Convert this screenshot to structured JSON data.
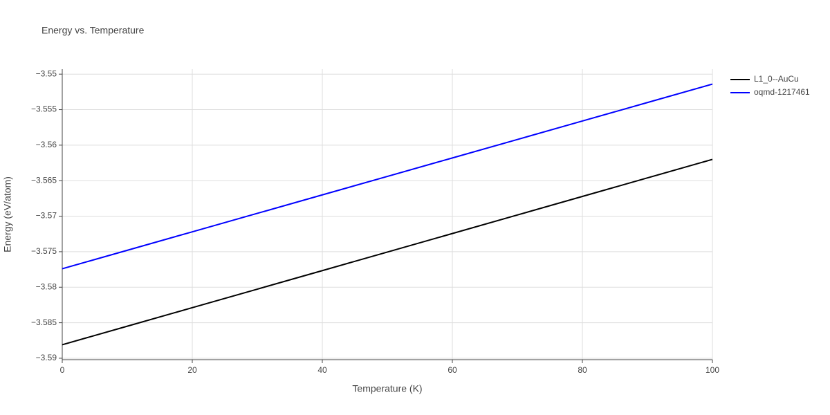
{
  "chart_data": {
    "type": "line",
    "title": "Energy vs. Temperature",
    "x_label": "Temperature (K)",
    "y_label": "Energy (eV/atom)",
    "x": [
      0,
      10,
      20,
      30,
      40,
      50,
      60,
      70,
      80,
      90,
      100
    ],
    "series": [
      {
        "name": "L1_0--AuCu",
        "color": "#000000",
        "values": [
          -3.5881,
          -3.58549,
          -3.58288,
          -3.58027,
          -3.57766,
          -3.57505,
          -3.57244,
          -3.56983,
          -3.56722,
          -3.56461,
          -3.562
        ]
      },
      {
        "name": "oqmd-1217461",
        "color": "#0000ff",
        "values": [
          -3.5774,
          -3.5748,
          -3.5722,
          -3.5696,
          -3.567,
          -3.5644,
          -3.5618,
          -3.5592,
          -3.5566,
          -3.554,
          -3.5514
        ]
      }
    ],
    "xlim": [
      0,
      100
    ],
    "xticks": [
      0,
      20,
      40,
      60,
      80,
      100
    ],
    "ylim": [
      -3.5902,
      -3.5493
    ],
    "yticks": [
      {
        "value": -3.59,
        "label": "−3.59"
      },
      {
        "value": -3.585,
        "label": "−3.585"
      },
      {
        "value": -3.58,
        "label": "−3.58"
      },
      {
        "value": -3.575,
        "label": "−3.575"
      },
      {
        "value": -3.57,
        "label": "−3.57"
      },
      {
        "value": -3.565,
        "label": "−3.565"
      },
      {
        "value": -3.56,
        "label": "−3.56"
      },
      {
        "value": -3.555,
        "label": "−3.555"
      },
      {
        "value": -3.55,
        "label": "−3.55"
      }
    ],
    "grid": true,
    "legend": "right"
  }
}
